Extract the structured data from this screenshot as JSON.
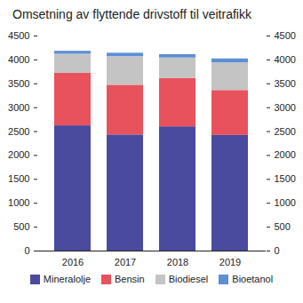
{
  "chart_data": {
    "type": "bar",
    "stacked": true,
    "title": "Omsetning av flyttende drivstoff til veitrafikk",
    "categories": [
      "2016",
      "2017",
      "2018",
      "2019"
    ],
    "series": [
      {
        "name": "Mineralolje",
        "color": "#4a4a9f",
        "values": [
          2620,
          2430,
          2600,
          2420
        ]
      },
      {
        "name": "Bensin",
        "color": "#e8525c",
        "values": [
          1100,
          1040,
          1010,
          940
        ]
      },
      {
        "name": "Biodiesel",
        "color": "#c4c4c4",
        "values": [
          400,
          600,
          430,
          580
        ]
      },
      {
        "name": "Bioetanol",
        "color": "#5b8fd6",
        "values": [
          60,
          70,
          70,
          80
        ]
      }
    ],
    "ylim": [
      0,
      4500
    ],
    "yticks": [
      0,
      500,
      1000,
      1500,
      2000,
      2500,
      3000,
      3500,
      4000,
      4500
    ],
    "y2lim": [
      0,
      4500
    ],
    "y2ticks": [
      0,
      500,
      1000,
      1500,
      2000,
      2500,
      3000,
      3500,
      4000,
      4500
    ],
    "grid": false,
    "legend": "bottom"
  }
}
